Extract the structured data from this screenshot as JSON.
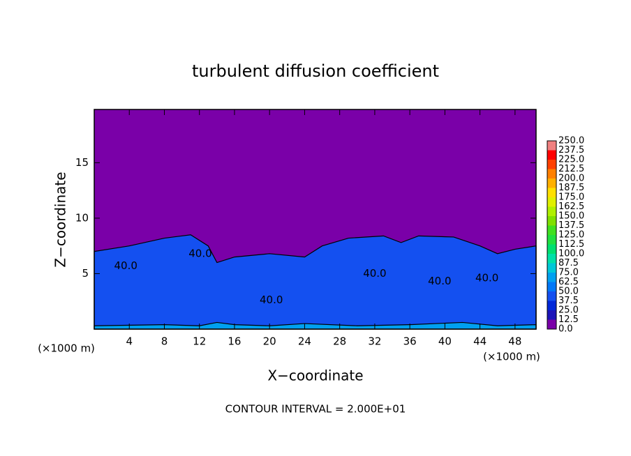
{
  "chart_data": {
    "type": "contour",
    "title": "turbulent diffusion coefficient",
    "x_label": "X−coordinate",
    "y_label": "Z−coordinate",
    "x_unit": "(×1000 m)",
    "note": "CONTOUR INTERVAL = 2.000E+01",
    "xlim": [
      0,
      50.4
    ],
    "ylim": [
      0,
      19.8
    ],
    "xticks": [
      4,
      8,
      12,
      16,
      20,
      24,
      28,
      32,
      36,
      40,
      44,
      48
    ],
    "yticks": [
      5,
      10,
      15
    ],
    "background_level": 0,
    "colorbar": {
      "levels": [
        {
          "value": 0,
          "label": "0.0"
        },
        12.5,
        {
          "value": 25,
          "label": "25.0"
        },
        37.5,
        {
          "value": 50,
          "label": "50.0"
        },
        62.5,
        {
          "value": 75,
          "label": "75.0"
        },
        87.5,
        {
          "value": 100,
          "label": "100.0"
        },
        112.5,
        {
          "value": 125,
          "label": "125.0"
        },
        137.5,
        {
          "value": 150,
          "label": "150.0"
        },
        162.5,
        {
          "value": 175,
          "label": "175.0"
        },
        187.5,
        {
          "value": 200,
          "label": "200.0"
        },
        212.5,
        {
          "value": 225,
          "label": "225.0"
        },
        237.5,
        {
          "value": 250,
          "label": "250.0"
        }
      ],
      "colors": [
        "#7a00a8",
        "#1c14b8",
        "#0028d8",
        "#1450f0",
        "#0078f8",
        "#00a0f0",
        "#00c8d8",
        "#00e0a8",
        "#00e070",
        "#20e040",
        "#40e020",
        "#80e000",
        "#b0f000",
        "#e0f000",
        "#ffe000",
        "#ffb000",
        "#ff8000",
        "#ff4000",
        "#ff0000",
        "#f08080"
      ]
    },
    "layers": [
      {
        "level": 40,
        "x": [
          0,
          4,
          8,
          11,
          13,
          14,
          16,
          20,
          24,
          26,
          29,
          33,
          35,
          37,
          41,
          44,
          46,
          48,
          50.4
        ],
        "top": [
          7,
          7.5,
          8.2,
          8.5,
          7.5,
          6,
          6.5,
          6.8,
          6.5,
          7.5,
          8.2,
          8.4,
          7.8,
          8.4,
          8.3,
          7.5,
          6.8,
          7.2,
          7.5
        ]
      },
      {
        "level": 65,
        "x": [
          0,
          8,
          12,
          14,
          16,
          20,
          24,
          30,
          36,
          42,
          46,
          50.4
        ],
        "top": [
          0.3,
          0.4,
          0.3,
          0.6,
          0.4,
          0.3,
          0.5,
          0.3,
          0.4,
          0.6,
          0.3,
          0.4
        ]
      }
    ],
    "contour_labels": [
      {
        "text": "40.0",
        "x": 3.6,
        "y": 5.7
      },
      {
        "text": "40.0",
        "x": 12.1,
        "y": 6.8
      },
      {
        "text": "40.0",
        "x": 20.2,
        "y": 2.6
      },
      {
        "text": "40.0",
        "x": 32,
        "y": 5
      },
      {
        "text": "40.0",
        "x": 39.4,
        "y": 4.3
      },
      {
        "text": "40.0",
        "x": 44.8,
        "y": 4.6
      }
    ]
  }
}
